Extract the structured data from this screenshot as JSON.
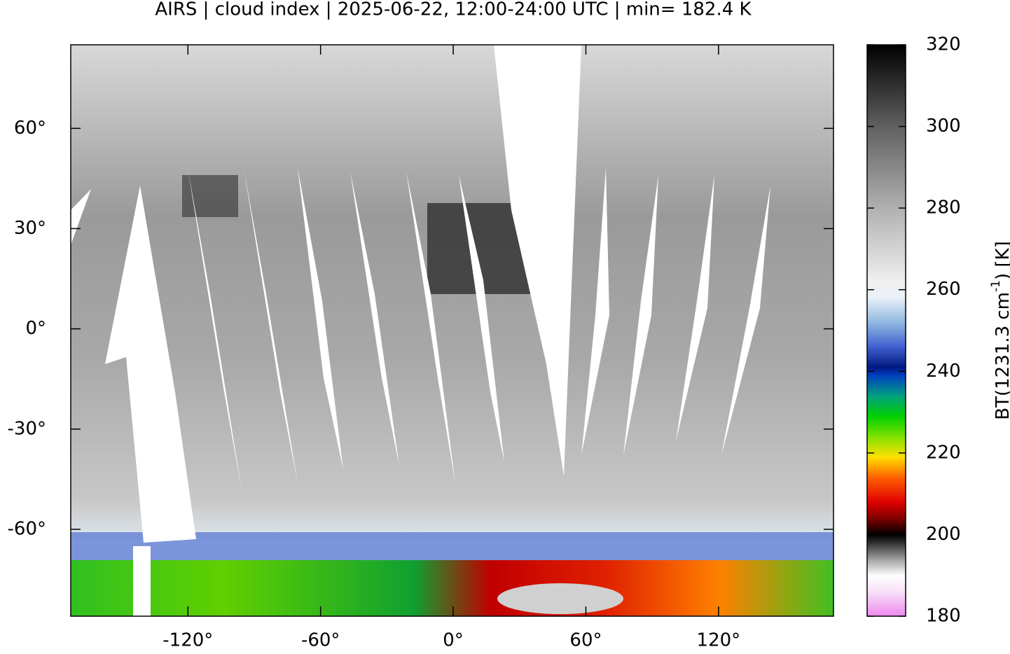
{
  "title": "AIRS | cloud index | 2025-06-22, 12:00-24:00 UTC | min= 182.4 K",
  "map": {
    "xlim": [
      -173,
      172
    ],
    "ylim": [
      -86,
      85
    ],
    "xticks": [
      {
        "value": -120,
        "label": "-120°"
      },
      {
        "value": -60,
        "label": "-60°"
      },
      {
        "value": 0,
        "label": "0°"
      },
      {
        "value": 60,
        "label": "60°"
      },
      {
        "value": 120,
        "label": "120°"
      }
    ],
    "yticks": [
      {
        "value": -60,
        "label": "-60°"
      },
      {
        "value": -30,
        "label": "-30°"
      },
      {
        "value": 0,
        "label": "0°"
      },
      {
        "value": 30,
        "label": "30°"
      },
      {
        "value": 60,
        "label": "60°"
      }
    ]
  },
  "colorbar": {
    "lim": [
      180,
      320
    ],
    "ticks": [
      180,
      200,
      220,
      240,
      260,
      280,
      300,
      320
    ],
    "label": {
      "text": "BT(1231.3 cm",
      "superscript": "-1",
      "suffix": ") [K]"
    },
    "colormap": [
      {
        "value": 180,
        "color": "#ee88ee"
      },
      {
        "value": 186,
        "color": "#f8e0f8"
      },
      {
        "value": 190,
        "color": "#ffffff"
      },
      {
        "value": 194,
        "color": "#a0a0a0"
      },
      {
        "value": 198,
        "color": "#303030"
      },
      {
        "value": 200,
        "color": "#000000"
      },
      {
        "value": 204,
        "color": "#800000"
      },
      {
        "value": 208,
        "color": "#e00000"
      },
      {
        "value": 214,
        "color": "#ff6000"
      },
      {
        "value": 219,
        "color": "#ffe000"
      },
      {
        "value": 224,
        "color": "#80e000"
      },
      {
        "value": 229,
        "color": "#00d000"
      },
      {
        "value": 234,
        "color": "#00a080"
      },
      {
        "value": 239,
        "color": "#0040c0"
      },
      {
        "value": 241,
        "color": "#001880"
      },
      {
        "value": 246,
        "color": "#4060d0"
      },
      {
        "value": 252,
        "color": "#90b8e0"
      },
      {
        "value": 258,
        "color": "#e8f0f8"
      },
      {
        "value": 262,
        "color": "#f0f0f0"
      },
      {
        "value": 280,
        "color": "#b0b0b0"
      },
      {
        "value": 300,
        "color": "#606060"
      },
      {
        "value": 320,
        "color": "#000000"
      }
    ]
  }
}
